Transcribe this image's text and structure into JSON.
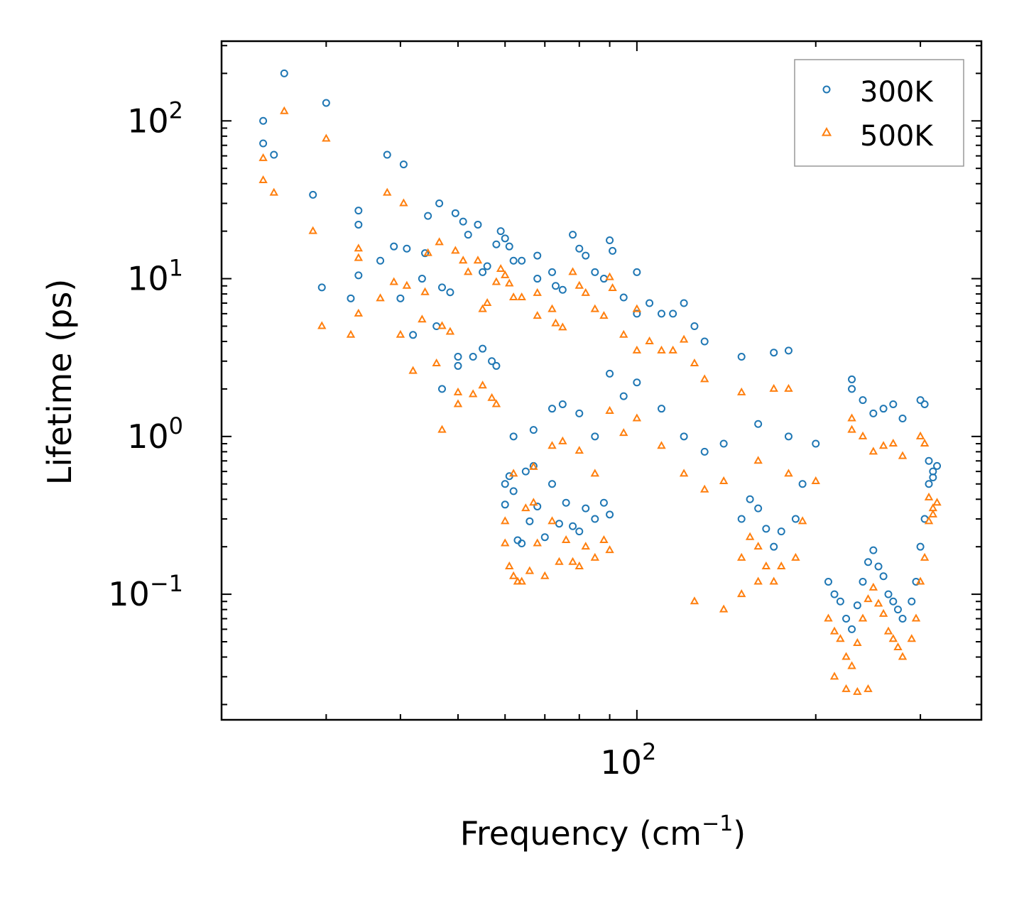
{
  "chart_data": {
    "type": "scatter",
    "title": "",
    "xlabel": "Frequency (cm",
    "xlabel_sup": "−1",
    "xlabel_close": ")",
    "ylabel": "Lifetime (ps)",
    "xscale": "log",
    "yscale": "log",
    "xlim": [
      20,
      380
    ],
    "ylim": [
      0.016,
      320
    ],
    "x_tick_labels": [
      {
        "value": 100,
        "base": "10",
        "exp": "2"
      }
    ],
    "y_tick_labels": [
      {
        "value": 0.1,
        "base": "10",
        "exp": "−1"
      },
      {
        "value": 1,
        "base": "10",
        "exp": "0"
      },
      {
        "value": 10,
        "base": "10",
        "exp": "1"
      },
      {
        "value": 100,
        "base": "10",
        "exp": "2"
      }
    ],
    "legend_position": "top-right",
    "colors": {
      "s300": "#1f77b4",
      "s500": "#ff7f0e"
    },
    "series": [
      {
        "name": "300K",
        "marker": "circle",
        "color": "#1f77b4",
        "points": [
          [
            23.5,
            100
          ],
          [
            23.5,
            72
          ],
          [
            24.5,
            61
          ],
          [
            25.5,
            200
          ],
          [
            28.5,
            34
          ],
          [
            29.5,
            8.8
          ],
          [
            30,
            130
          ],
          [
            33,
            7.5
          ],
          [
            34,
            27
          ],
          [
            34,
            22
          ],
          [
            34,
            10.5
          ],
          [
            37,
            13
          ],
          [
            38,
            61
          ],
          [
            39,
            16
          ],
          [
            40,
            7.5
          ],
          [
            40.5,
            53
          ],
          [
            41,
            15.5
          ],
          [
            42,
            4.4
          ],
          [
            43.5,
            10
          ],
          [
            44,
            14.5
          ],
          [
            44.5,
            25
          ],
          [
            46,
            5
          ],
          [
            46.5,
            30
          ],
          [
            47,
            8.8
          ],
          [
            47,
            2
          ],
          [
            48.5,
            8.2
          ],
          [
            49.5,
            26
          ],
          [
            50,
            3.2
          ],
          [
            50,
            2.8
          ],
          [
            51,
            23
          ],
          [
            52,
            19
          ],
          [
            53,
            3.2
          ],
          [
            54,
            22
          ],
          [
            55,
            3.6
          ],
          [
            55,
            11
          ],
          [
            56,
            12
          ],
          [
            57,
            3
          ],
          [
            58,
            16.5
          ],
          [
            58,
            2.8
          ],
          [
            59,
            20
          ],
          [
            60,
            18
          ],
          [
            61,
            16
          ],
          [
            62,
            13
          ],
          [
            64,
            13
          ],
          [
            68,
            14
          ],
          [
            68,
            10
          ],
          [
            72,
            11
          ],
          [
            73,
            9
          ],
          [
            75,
            8.5
          ],
          [
            78,
            19
          ],
          [
            80,
            15.5
          ],
          [
            82,
            14
          ],
          [
            85,
            11
          ],
          [
            88,
            10
          ],
          [
            90,
            17.5
          ],
          [
            91,
            15
          ],
          [
            95,
            7.6
          ],
          [
            100,
            11
          ],
          [
            100,
            6
          ],
          [
            105,
            7
          ],
          [
            110,
            6
          ],
          [
            120,
            7
          ],
          [
            115,
            6
          ],
          [
            125,
            5
          ],
          [
            130,
            4
          ],
          [
            150,
            3.2
          ],
          [
            170,
            3.4
          ],
          [
            180,
            3.5
          ],
          [
            230,
            2.3
          ],
          [
            230,
            2
          ],
          [
            240,
            1.7
          ],
          [
            250,
            1.4
          ],
          [
            260,
            1.5
          ],
          [
            270,
            1.6
          ],
          [
            280,
            1.3
          ],
          [
            300,
            1.7
          ],
          [
            305,
            1.6
          ],
          [
            310,
            0.7
          ],
          [
            315,
            0.6
          ],
          [
            60,
            0.37
          ],
          [
            61,
            0.56
          ],
          [
            62,
            0.45
          ],
          [
            63,
            0.22
          ],
          [
            64,
            0.21
          ],
          [
            66,
            0.29
          ],
          [
            67,
            0.65
          ],
          [
            68,
            0.36
          ],
          [
            70,
            0.23
          ],
          [
            72,
            0.5
          ],
          [
            74,
            0.28
          ],
          [
            76,
            0.38
          ],
          [
            78,
            0.27
          ],
          [
            80,
            0.25
          ],
          [
            82,
            0.35
          ],
          [
            85,
            0.3
          ],
          [
            88,
            0.38
          ],
          [
            90,
            0.32
          ],
          [
            60,
            0.5
          ],
          [
            65,
            0.6
          ],
          [
            62,
            1.0
          ],
          [
            67,
            1.1
          ],
          [
            72,
            1.5
          ],
          [
            75,
            1.6
          ],
          [
            80,
            1.4
          ],
          [
            85,
            1.0
          ],
          [
            90,
            2.5
          ],
          [
            95,
            1.8
          ],
          [
            100,
            2.2
          ],
          [
            110,
            1.5
          ],
          [
            120,
            1.0
          ],
          [
            130,
            0.8
          ],
          [
            140,
            0.9
          ],
          [
            160,
            1.2
          ],
          [
            180,
            1.0
          ],
          [
            200,
            0.9
          ],
          [
            190,
            0.5
          ],
          [
            185,
            0.3
          ],
          [
            175,
            0.25
          ],
          [
            170,
            0.2
          ],
          [
            165,
            0.26
          ],
          [
            160,
            0.35
          ],
          [
            155,
            0.4
          ],
          [
            150,
            0.3
          ],
          [
            210,
            0.12
          ],
          [
            215,
            0.1
          ],
          [
            220,
            0.09
          ],
          [
            225,
            0.07
          ],
          [
            230,
            0.06
          ],
          [
            235,
            0.085
          ],
          [
            240,
            0.12
          ],
          [
            245,
            0.16
          ],
          [
            250,
            0.19
          ],
          [
            255,
            0.15
          ],
          [
            260,
            0.13
          ],
          [
            265,
            0.1
          ],
          [
            270,
            0.09
          ],
          [
            275,
            0.08
          ],
          [
            280,
            0.07
          ],
          [
            290,
            0.09
          ],
          [
            295,
            0.12
          ],
          [
            300,
            0.2
          ],
          [
            305,
            0.3
          ],
          [
            310,
            0.5
          ],
          [
            315,
            0.55
          ],
          [
            320,
            0.65
          ]
        ]
      },
      {
        "name": "500K",
        "marker": "triangle",
        "color": "#ff7f0e",
        "points": [
          [
            23.5,
            58
          ],
          [
            23.5,
            42
          ],
          [
            24.5,
            35
          ],
          [
            25.5,
            115
          ],
          [
            28.5,
            20
          ],
          [
            29.5,
            5
          ],
          [
            30,
            77
          ],
          [
            33,
            4.4
          ],
          [
            34,
            15.5
          ],
          [
            34,
            13.5
          ],
          [
            34,
            6
          ],
          [
            37,
            7.5
          ],
          [
            38,
            35
          ],
          [
            39,
            9.5
          ],
          [
            40,
            4.4
          ],
          [
            40.5,
            30
          ],
          [
            41,
            9
          ],
          [
            42,
            2.6
          ],
          [
            43.5,
            5.5
          ],
          [
            44,
            8.2
          ],
          [
            44.5,
            14.5
          ],
          [
            46,
            2.9
          ],
          [
            46.5,
            17
          ],
          [
            47,
            5
          ],
          [
            47,
            1.1
          ],
          [
            48.5,
            4.6
          ],
          [
            49.5,
            15
          ],
          [
            50,
            1.9
          ],
          [
            50,
            1.6
          ],
          [
            51,
            13
          ],
          [
            52,
            11
          ],
          [
            53,
            1.85
          ],
          [
            54,
            13
          ],
          [
            55,
            2.1
          ],
          [
            55,
            6.4
          ],
          [
            56,
            7
          ],
          [
            57,
            1.75
          ],
          [
            58,
            9.5
          ],
          [
            58,
            1.6
          ],
          [
            59,
            11.5
          ],
          [
            60,
            10.5
          ],
          [
            61,
            9.3
          ],
          [
            62,
            7.6
          ],
          [
            64,
            7.6
          ],
          [
            68,
            8.1
          ],
          [
            68,
            5.8
          ],
          [
            72,
            6.4
          ],
          [
            73,
            5.2
          ],
          [
            75,
            4.9
          ],
          [
            78,
            11
          ],
          [
            80,
            9
          ],
          [
            82,
            8.1
          ],
          [
            85,
            6.4
          ],
          [
            88,
            5.8
          ],
          [
            90,
            10.2
          ],
          [
            91,
            8.7
          ],
          [
            95,
            4.4
          ],
          [
            100,
            6.4
          ],
          [
            100,
            3.5
          ],
          [
            105,
            4
          ],
          [
            110,
            3.5
          ],
          [
            120,
            4.1
          ],
          [
            115,
            3.5
          ],
          [
            125,
            2.9
          ],
          [
            130,
            2.3
          ],
          [
            150,
            1.9
          ],
          [
            170,
            2
          ],
          [
            180,
            2
          ],
          [
            230,
            1.3
          ],
          [
            230,
            1.1
          ],
          [
            240,
            1
          ],
          [
            250,
            0.8
          ],
          [
            260,
            0.87
          ],
          [
            270,
            0.9
          ],
          [
            280,
            0.75
          ],
          [
            300,
            1
          ],
          [
            305,
            0.9
          ],
          [
            310,
            0.41
          ],
          [
            315,
            0.35
          ],
          [
            60,
            0.21
          ],
          [
            61,
            0.15
          ],
          [
            62,
            0.13
          ],
          [
            63,
            0.12
          ],
          [
            64,
            0.12
          ],
          [
            66,
            0.14
          ],
          [
            67,
            0.38
          ],
          [
            68,
            0.21
          ],
          [
            70,
            0.13
          ],
          [
            72,
            0.29
          ],
          [
            74,
            0.16
          ],
          [
            76,
            0.22
          ],
          [
            78,
            0.16
          ],
          [
            80,
            0.15
          ],
          [
            82,
            0.2
          ],
          [
            85,
            0.17
          ],
          [
            88,
            0.22
          ],
          [
            90,
            0.19
          ],
          [
            60,
            0.29
          ],
          [
            65,
            0.35
          ],
          [
            62,
            0.58
          ],
          [
            67,
            0.64
          ],
          [
            72,
            0.87
          ],
          [
            75,
            0.93
          ],
          [
            80,
            0.81
          ],
          [
            85,
            0.58
          ],
          [
            90,
            1.45
          ],
          [
            95,
            1.05
          ],
          [
            100,
            1.3
          ],
          [
            110,
            0.87
          ],
          [
            120,
            0.58
          ],
          [
            130,
            0.46
          ],
          [
            140,
            0.52
          ],
          [
            160,
            0.7
          ],
          [
            180,
            0.58
          ],
          [
            200,
            0.52
          ],
          [
            190,
            0.29
          ],
          [
            185,
            0.17
          ],
          [
            175,
            0.15
          ],
          [
            170,
            0.12
          ],
          [
            165,
            0.15
          ],
          [
            160,
            0.2
          ],
          [
            155,
            0.23
          ],
          [
            150,
            0.17
          ],
          [
            210,
            0.07
          ],
          [
            215,
            0.058
          ],
          [
            220,
            0.052
          ],
          [
            225,
            0.04
          ],
          [
            230,
            0.035
          ],
          [
            235,
            0.049
          ],
          [
            240,
            0.07
          ],
          [
            245,
            0.093
          ],
          [
            250,
            0.11
          ],
          [
            255,
            0.087
          ],
          [
            260,
            0.075
          ],
          [
            265,
            0.058
          ],
          [
            270,
            0.052
          ],
          [
            275,
            0.046
          ],
          [
            280,
            0.04
          ],
          [
            290,
            0.052
          ],
          [
            295,
            0.07
          ],
          [
            300,
            0.12
          ],
          [
            305,
            0.17
          ],
          [
            310,
            0.29
          ],
          [
            315,
            0.32
          ],
          [
            320,
            0.38
          ],
          [
            140,
            0.08
          ],
          [
            150,
            0.1
          ],
          [
            160,
            0.12
          ],
          [
            125,
            0.09
          ],
          [
            215,
            0.03
          ],
          [
            225,
            0.025
          ],
          [
            235,
            0.024
          ],
          [
            245,
            0.025
          ]
        ]
      }
    ]
  }
}
